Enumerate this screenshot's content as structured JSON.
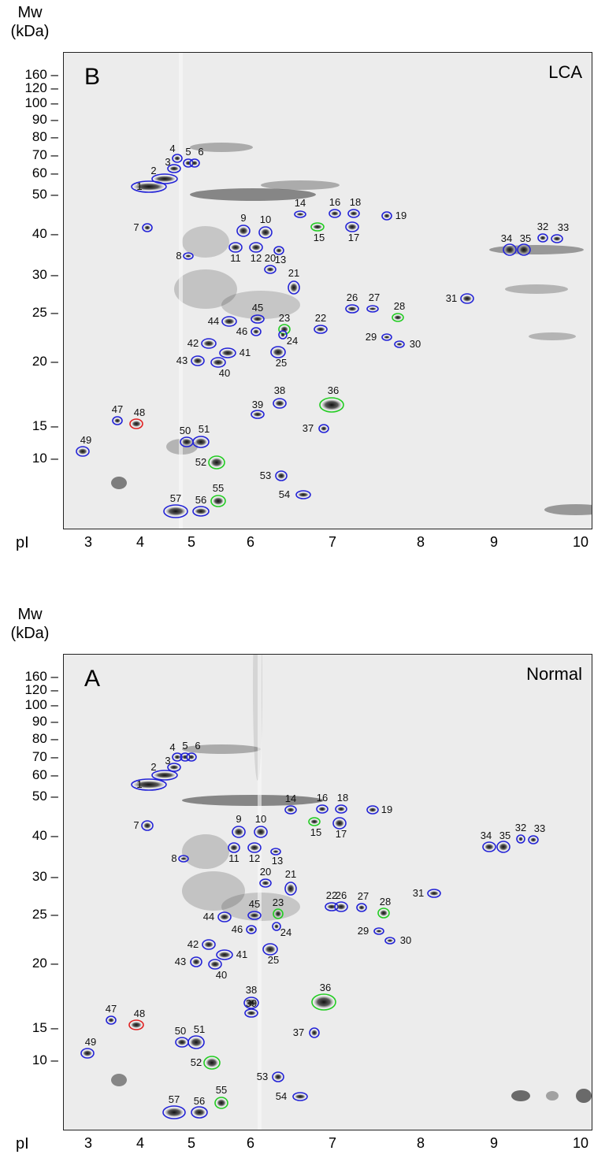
{
  "axes": {
    "mw_label_line1": "Mw",
    "mw_label_line2": "(kDa)",
    "mw_ticks": [
      "160",
      "120",
      "100",
      "90",
      "80",
      "70",
      "60",
      "50",
      "40",
      "30",
      "25",
      "20",
      "15",
      "10"
    ],
    "pi_label": "pI",
    "pi_ticks": [
      "3",
      "4",
      "5",
      "6",
      "7",
      "8",
      "9",
      "10"
    ]
  },
  "panels": [
    {
      "letter": "B",
      "condition": "LCA",
      "spots": [
        {
          "id": "1",
          "color": "#2323d6"
        },
        {
          "id": "2",
          "color": "#2323d6"
        },
        {
          "id": "3",
          "color": "#2323d6"
        },
        {
          "id": "4",
          "color": "#2323d6"
        },
        {
          "id": "5",
          "color": "#2323d6"
        },
        {
          "id": "6",
          "color": "#2323d6"
        },
        {
          "id": "7",
          "color": "#2323d6"
        },
        {
          "id": "8",
          "color": "#2323d6"
        },
        {
          "id": "9",
          "color": "#2323d6"
        },
        {
          "id": "10",
          "color": "#2323d6"
        },
        {
          "id": "11",
          "color": "#2323d6"
        },
        {
          "id": "12",
          "color": "#2323d6"
        },
        {
          "id": "13",
          "color": "#2323d6"
        },
        {
          "id": "14",
          "color": "#2323d6"
        },
        {
          "id": "15",
          "color": "#22cc22"
        },
        {
          "id": "16",
          "color": "#2323d6"
        },
        {
          "id": "17",
          "color": "#2323d6"
        },
        {
          "id": "18",
          "color": "#2323d6"
        },
        {
          "id": "19",
          "color": "#2323d6"
        },
        {
          "id": "20",
          "color": "#2323d6"
        },
        {
          "id": "21",
          "color": "#2323d6"
        },
        {
          "id": "22",
          "color": "#2323d6"
        },
        {
          "id": "23",
          "color": "#22cc22"
        },
        {
          "id": "24",
          "color": "#2323d6"
        },
        {
          "id": "25",
          "color": "#2323d6"
        },
        {
          "id": "26",
          "color": "#2323d6"
        },
        {
          "id": "27",
          "color": "#2323d6"
        },
        {
          "id": "28",
          "color": "#22cc22"
        },
        {
          "id": "29",
          "color": "#2323d6"
        },
        {
          "id": "30",
          "color": "#2323d6"
        },
        {
          "id": "31",
          "color": "#2323d6"
        },
        {
          "id": "32",
          "color": "#2323d6"
        },
        {
          "id": "33",
          "color": "#2323d6"
        },
        {
          "id": "34",
          "color": "#2323d6"
        },
        {
          "id": "35",
          "color": "#2323d6"
        },
        {
          "id": "36",
          "color": "#22cc22"
        },
        {
          "id": "37",
          "color": "#2323d6"
        },
        {
          "id": "38",
          "color": "#2323d6"
        },
        {
          "id": "39",
          "color": "#2323d6"
        },
        {
          "id": "40",
          "color": "#2323d6"
        },
        {
          "id": "41",
          "color": "#2323d6"
        },
        {
          "id": "42",
          "color": "#2323d6"
        },
        {
          "id": "43",
          "color": "#2323d6"
        },
        {
          "id": "44",
          "color": "#2323d6"
        },
        {
          "id": "45",
          "color": "#2323d6"
        },
        {
          "id": "46",
          "color": "#2323d6"
        },
        {
          "id": "47",
          "color": "#2323d6"
        },
        {
          "id": "48",
          "color": "#e02020"
        },
        {
          "id": "49",
          "color": "#2323d6"
        },
        {
          "id": "50",
          "color": "#2323d6"
        },
        {
          "id": "51",
          "color": "#2323d6"
        },
        {
          "id": "52",
          "color": "#22cc22"
        },
        {
          "id": "53",
          "color": "#2323d6"
        },
        {
          "id": "54",
          "color": "#2323d6"
        },
        {
          "id": "55",
          "color": "#22cc22"
        },
        {
          "id": "56",
          "color": "#2323d6"
        },
        {
          "id": "57",
          "color": "#2323d6"
        }
      ]
    },
    {
      "letter": "A",
      "condition": "Normal",
      "spots": [
        {
          "id": "1",
          "color": "#2323d6"
        },
        {
          "id": "2",
          "color": "#2323d6"
        },
        {
          "id": "3",
          "color": "#2323d6"
        },
        {
          "id": "4",
          "color": "#2323d6"
        },
        {
          "id": "5",
          "color": "#2323d6"
        },
        {
          "id": "6",
          "color": "#2323d6"
        },
        {
          "id": "7",
          "color": "#2323d6"
        },
        {
          "id": "8",
          "color": "#2323d6"
        },
        {
          "id": "9",
          "color": "#2323d6"
        },
        {
          "id": "10",
          "color": "#2323d6"
        },
        {
          "id": "11",
          "color": "#2323d6"
        },
        {
          "id": "12",
          "color": "#2323d6"
        },
        {
          "id": "13",
          "color": "#2323d6"
        },
        {
          "id": "14",
          "color": "#2323d6"
        },
        {
          "id": "15",
          "color": "#22cc22"
        },
        {
          "id": "16",
          "color": "#2323d6"
        },
        {
          "id": "17",
          "color": "#2323d6"
        },
        {
          "id": "18",
          "color": "#2323d6"
        },
        {
          "id": "19",
          "color": "#2323d6"
        },
        {
          "id": "20",
          "color": "#2323d6"
        },
        {
          "id": "21",
          "color": "#2323d6"
        },
        {
          "id": "22",
          "color": "#2323d6"
        },
        {
          "id": "23",
          "color": "#22cc22"
        },
        {
          "id": "24",
          "color": "#2323d6"
        },
        {
          "id": "25",
          "color": "#2323d6"
        },
        {
          "id": "26",
          "color": "#2323d6"
        },
        {
          "id": "27",
          "color": "#2323d6"
        },
        {
          "id": "28",
          "color": "#22cc22"
        },
        {
          "id": "29",
          "color": "#2323d6"
        },
        {
          "id": "30",
          "color": "#2323d6"
        },
        {
          "id": "31",
          "color": "#2323d6"
        },
        {
          "id": "32",
          "color": "#2323d6"
        },
        {
          "id": "33",
          "color": "#2323d6"
        },
        {
          "id": "34",
          "color": "#2323d6"
        },
        {
          "id": "35",
          "color": "#2323d6"
        },
        {
          "id": "36",
          "color": "#22cc22"
        },
        {
          "id": "37",
          "color": "#2323d6"
        },
        {
          "id": "38",
          "color": "#2323d6"
        },
        {
          "id": "39",
          "color": "#2323d6"
        },
        {
          "id": "40",
          "color": "#2323d6"
        },
        {
          "id": "41",
          "color": "#2323d6"
        },
        {
          "id": "42",
          "color": "#2323d6"
        },
        {
          "id": "43",
          "color": "#2323d6"
        },
        {
          "id": "44",
          "color": "#2323d6"
        },
        {
          "id": "45",
          "color": "#2323d6"
        },
        {
          "id": "46",
          "color": "#2323d6"
        },
        {
          "id": "47",
          "color": "#2323d6"
        },
        {
          "id": "48",
          "color": "#e02020"
        },
        {
          "id": "49",
          "color": "#2323d6"
        },
        {
          "id": "50",
          "color": "#2323d6"
        },
        {
          "id": "51",
          "color": "#2323d6"
        },
        {
          "id": "52",
          "color": "#22cc22"
        },
        {
          "id": "53",
          "color": "#2323d6"
        },
        {
          "id": "54",
          "color": "#2323d6"
        },
        {
          "id": "55",
          "color": "#22cc22"
        },
        {
          "id": "56",
          "color": "#2323d6"
        },
        {
          "id": "57",
          "color": "#2323d6"
        }
      ]
    }
  ]
}
